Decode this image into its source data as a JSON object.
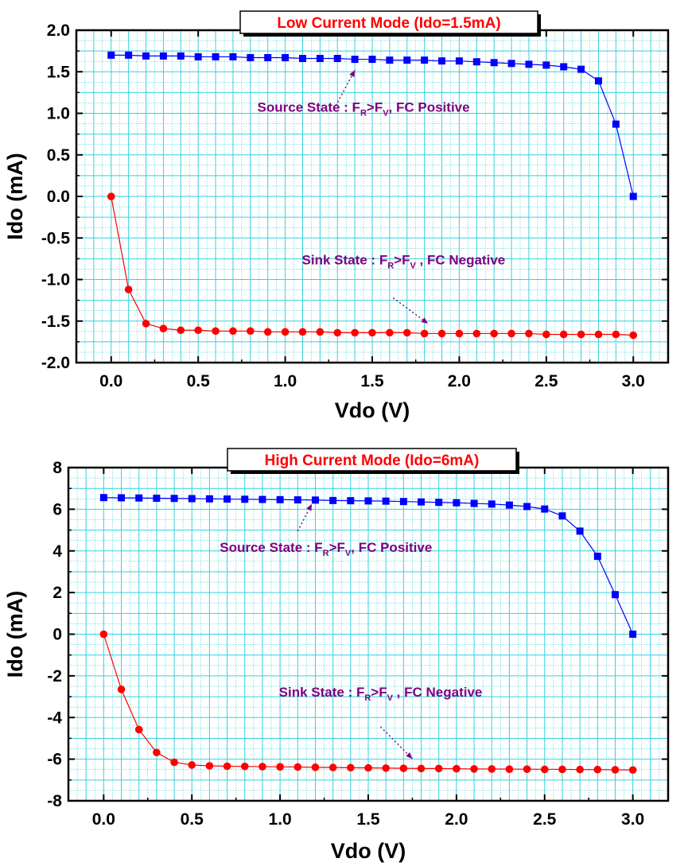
{
  "chart_data": [
    {
      "type": "scatter",
      "title": "Low Current Mode   (Ido=1.5mA)",
      "xlabel": "Vdo (V)",
      "ylabel": "Ido (mA)",
      "xlim": [
        -0.2,
        3.2
      ],
      "ylim": [
        -2.0,
        2.0
      ],
      "x_ticks": [
        "0.0",
        "0.5",
        "1.0",
        "1.5",
        "2.0",
        "2.5",
        "3.0"
      ],
      "y_ticks": [
        "2.0",
        "1.5",
        "1.0",
        "0.5",
        "0.0",
        "-0.5",
        "-1.0",
        "-1.5",
        "-2.0"
      ],
      "grid": true,
      "series": [
        {
          "marker": "square",
          "color": "#0000ff",
          "x": [
            0.0,
            0.1,
            0.2,
            0.3,
            0.4,
            0.5,
            0.6,
            0.7,
            0.8,
            0.9,
            1.0,
            1.1,
            1.2,
            1.3,
            1.4,
            1.5,
            1.6,
            1.7,
            1.8,
            1.9,
            2.0,
            2.1,
            2.2,
            2.3,
            2.4,
            2.5,
            2.6,
            2.7,
            2.8,
            2.9,
            3.0
          ],
          "values": [
            1.7,
            1.7,
            1.69,
            1.69,
            1.69,
            1.68,
            1.68,
            1.68,
            1.67,
            1.67,
            1.67,
            1.66,
            1.66,
            1.66,
            1.65,
            1.65,
            1.64,
            1.64,
            1.64,
            1.63,
            1.63,
            1.62,
            1.61,
            1.6,
            1.59,
            1.58,
            1.56,
            1.53,
            1.39,
            0.87,
            0.0
          ]
        },
        {
          "marker": "circle",
          "color": "#ff0000",
          "x": [
            0.0,
            0.1,
            0.2,
            0.3,
            0.4,
            0.5,
            0.6,
            0.7,
            0.8,
            0.9,
            1.0,
            1.1,
            1.2,
            1.3,
            1.4,
            1.5,
            1.6,
            1.7,
            1.8,
            1.9,
            2.0,
            2.1,
            2.2,
            2.3,
            2.4,
            2.5,
            2.6,
            2.7,
            2.8,
            2.9,
            3.0
          ],
          "values": [
            0.0,
            -1.12,
            -1.53,
            -1.59,
            -1.61,
            -1.61,
            -1.62,
            -1.62,
            -1.62,
            -1.63,
            -1.63,
            -1.63,
            -1.63,
            -1.64,
            -1.64,
            -1.64,
            -1.64,
            -1.64,
            -1.65,
            -1.65,
            -1.65,
            -1.65,
            -1.65,
            -1.65,
            -1.65,
            -1.66,
            -1.66,
            -1.66,
            -1.66,
            -1.66,
            -1.67
          ]
        }
      ],
      "annotations": [
        {
          "main": "Source State : F",
          "sub1": "R",
          "mid": ">F",
          "sub2": "V",
          "tail": ", FC Positive",
          "x": 1.45,
          "y": 1.02,
          "arrow_from": [
            1.28,
            1.05
          ],
          "arrow_to": [
            1.4,
            1.52
          ]
        },
        {
          "main": "Sink State : F",
          "sub1": "R",
          "mid": ">F",
          "sub2": "V",
          "tail": " , FC Negative",
          "x": 1.68,
          "y": -0.82,
          "arrow_from": [
            1.62,
            -1.22
          ],
          "arrow_to": [
            1.82,
            -1.53
          ]
        }
      ]
    },
    {
      "type": "scatter",
      "title": "High Current Mode    (Ido=6mA)",
      "xlabel": "Vdo (V)",
      "ylabel": "Ido (mA)",
      "xlim": [
        -0.2,
        3.2
      ],
      "ylim": [
        -8,
        8
      ],
      "x_ticks": [
        "0.0",
        "0.5",
        "1.0",
        "1.5",
        "2.0",
        "2.5",
        "3.0"
      ],
      "y_ticks": [
        "8",
        "6",
        "4",
        "2",
        "0",
        "-2",
        "-4",
        "-6",
        "-8"
      ],
      "grid": true,
      "series": [
        {
          "marker": "square",
          "color": "#0000ff",
          "x": [
            0.0,
            0.1,
            0.2,
            0.3,
            0.4,
            0.5,
            0.6,
            0.7,
            0.8,
            0.9,
            1.0,
            1.1,
            1.2,
            1.3,
            1.4,
            1.5,
            1.6,
            1.7,
            1.8,
            1.9,
            2.0,
            2.1,
            2.2,
            2.3,
            2.4,
            2.5,
            2.6,
            2.7,
            2.8,
            2.9,
            3.0
          ],
          "values": [
            6.56,
            6.55,
            6.54,
            6.53,
            6.52,
            6.51,
            6.5,
            6.49,
            6.48,
            6.47,
            6.46,
            6.45,
            6.44,
            6.42,
            6.41,
            6.4,
            6.39,
            6.37,
            6.35,
            6.33,
            6.31,
            6.28,
            6.25,
            6.2,
            6.13,
            6.01,
            5.68,
            4.95,
            3.74,
            1.9,
            0.0
          ]
        },
        {
          "marker": "circle",
          "color": "#ff0000",
          "x": [
            0.0,
            0.1,
            0.2,
            0.3,
            0.4,
            0.5,
            0.6,
            0.7,
            0.8,
            0.9,
            1.0,
            1.1,
            1.2,
            1.3,
            1.4,
            1.5,
            1.6,
            1.7,
            1.8,
            1.9,
            2.0,
            2.1,
            2.2,
            2.3,
            2.4,
            2.5,
            2.6,
            2.7,
            2.8,
            2.9,
            3.0
          ],
          "values": [
            0.0,
            -2.65,
            -4.58,
            -5.68,
            -6.15,
            -6.28,
            -6.32,
            -6.34,
            -6.35,
            -6.36,
            -6.37,
            -6.38,
            -6.39,
            -6.4,
            -6.41,
            -6.42,
            -6.43,
            -6.44,
            -6.45,
            -6.45,
            -6.46,
            -6.47,
            -6.47,
            -6.48,
            -6.48,
            -6.49,
            -6.49,
            -6.5,
            -6.5,
            -6.51,
            -6.52
          ]
        }
      ],
      "annotations": [
        {
          "main": "Source State : F",
          "sub1": "R",
          "mid": ">F",
          "sub2": "V",
          "tail": ", FC Positive",
          "x": 1.26,
          "y": 3.95,
          "arrow_from": [
            1.1,
            4.95
          ],
          "arrow_to": [
            1.18,
            6.25
          ]
        },
        {
          "main": "Sink State : F",
          "sub1": "R",
          "mid": ">F",
          "sub2": "V",
          "tail": " , FC Negative",
          "x": 1.57,
          "y": -3.0,
          "arrow_from": [
            1.57,
            -4.45
          ],
          "arrow_to": [
            1.75,
            -5.98
          ]
        }
      ]
    }
  ]
}
